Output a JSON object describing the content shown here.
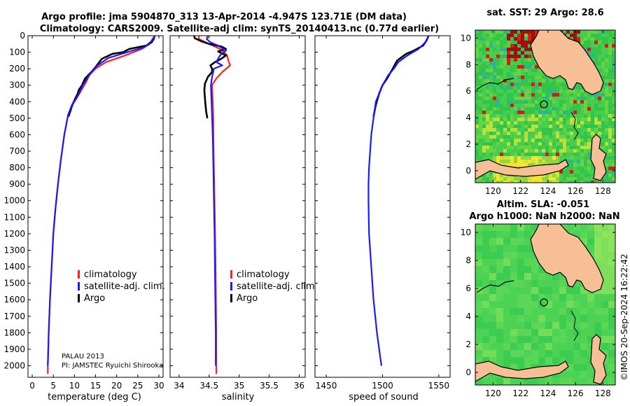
{
  "title_line1": "Argo profile: jma 5904870_313 13-Apr-2014 -4.947S 123.71E (DM data)",
  "title_line2": "Climatology: CARS2009. Satellite-adj clim: synTS_20140413.nc (0.77d earlier)",
  "colors": {
    "climatology": "#ff2020",
    "satellite": "#1a1aff",
    "argo": "#000000",
    "land": "#f7bf96",
    "coast": "#000000"
  },
  "chart_data": [
    {
      "type": "line",
      "name": "temperature-profile",
      "xlabel": "temperature (deg C)",
      "xlim": [
        -1,
        31
      ],
      "xticks": [
        0,
        5,
        10,
        15,
        20,
        25,
        30
      ],
      "ylim": [
        2070,
        0
      ],
      "yticks": [
        0,
        100,
        200,
        300,
        400,
        500,
        600,
        700,
        800,
        900,
        1000,
        1100,
        1200,
        1300,
        1400,
        1500,
        1600,
        1700,
        1800,
        1900,
        2000
      ],
      "series": [
        {
          "name": "climatology",
          "color": "#ff2020",
          "points": [
            [
              29.0,
              0
            ],
            [
              28.5,
              20
            ],
            [
              27.8,
              50
            ],
            [
              26.0,
              80
            ],
            [
              22.0,
              120
            ],
            [
              17.5,
              160
            ],
            [
              15.0,
              200
            ],
            [
              13.5,
              240
            ],
            [
              12.8,
              280
            ],
            [
              11.4,
              340
            ],
            [
              10.5,
              380
            ],
            [
              9.5,
              420
            ],
            [
              8.5,
              480
            ],
            [
              7.6,
              600
            ],
            [
              6.8,
              750
            ],
            [
              6.1,
              900
            ],
            [
              5.5,
              1050
            ],
            [
              5.0,
              1200
            ],
            [
              4.6,
              1400
            ],
            [
              4.2,
              1600
            ],
            [
              3.9,
              1800
            ],
            [
              3.7,
              2000
            ],
            [
              3.7,
              2050
            ]
          ]
        },
        {
          "name": "satellite-adj. clim.",
          "color": "#1a1aff",
          "points": [
            [
              29.1,
              0
            ],
            [
              28.4,
              30
            ],
            [
              26.5,
              70
            ],
            [
              22.5,
              100
            ],
            [
              18.0,
              135
            ],
            [
              15.5,
              180
            ],
            [
              14.0,
              220
            ],
            [
              13.0,
              260
            ],
            [
              12.0,
              300
            ],
            [
              11.3,
              340
            ],
            [
              10.4,
              380
            ],
            [
              9.4,
              420
            ],
            [
              8.5,
              480
            ],
            [
              7.6,
              600
            ],
            [
              6.8,
              750
            ],
            [
              6.1,
              900
            ],
            [
              5.5,
              1050
            ],
            [
              5.0,
              1200
            ],
            [
              4.6,
              1400
            ],
            [
              4.2,
              1600
            ],
            [
              3.9,
              1800
            ],
            [
              3.7,
              2000
            ]
          ]
        },
        {
          "name": "Argo",
          "color": "#000000",
          "points": [
            [
              29.0,
              0
            ],
            [
              28.8,
              20
            ],
            [
              28.3,
              40
            ],
            [
              27.0,
              60
            ],
            [
              23.0,
              80
            ],
            [
              21.5,
              100
            ],
            [
              19.0,
              110
            ],
            [
              16.5,
              140
            ],
            [
              15.0,
              190
            ],
            [
              14.0,
              220
            ],
            [
              12.5,
              260
            ],
            [
              11.8,
              300
            ],
            [
              11.0,
              330
            ],
            [
              10.8,
              350
            ],
            [
              10.2,
              380
            ],
            [
              9.5,
              420
            ],
            [
              9.0,
              460
            ],
            [
              8.6,
              490
            ]
          ]
        }
      ],
      "legend": [
        "climatology",
        "satellite-adj. clim.",
        "Argo"
      ],
      "annotation": [
        "PALAU 2013",
        "PI: JAMSTEC Ryuichi Shirooka"
      ]
    },
    {
      "type": "line",
      "name": "salinity-profile",
      "xlabel": "salinity",
      "xlim": [
        33.85,
        36.1
      ],
      "xticks": [
        34,
        34.5,
        35,
        35.5,
        36
      ],
      "xticklabels": [
        "34",
        "34.5",
        "35",
        "35.5",
        "36"
      ],
      "ylim": [
        2070,
        0
      ],
      "series": [
        {
          "name": "climatology",
          "color": "#ff2020",
          "points": [
            [
              34.33,
              0
            ],
            [
              34.33,
              20
            ],
            [
              34.5,
              50
            ],
            [
              34.68,
              80
            ],
            [
              34.75,
              100
            ],
            [
              34.8,
              120
            ],
            [
              34.82,
              150
            ],
            [
              34.85,
              180
            ],
            [
              34.72,
              220
            ],
            [
              34.62,
              260
            ],
            [
              34.55,
              300
            ],
            [
              34.56,
              400
            ],
            [
              34.57,
              500
            ],
            [
              34.57,
              600
            ],
            [
              34.58,
              800
            ],
            [
              34.59,
              1000
            ],
            [
              34.6,
              1200
            ],
            [
              34.61,
              1500
            ],
            [
              34.62,
              1800
            ],
            [
              34.62,
              2000
            ],
            [
              34.62,
              2050
            ]
          ]
        },
        {
          "name": "satellite-adj. clim.",
          "color": "#1a1aff",
          "points": [
            [
              34.48,
              0
            ],
            [
              34.46,
              20
            ],
            [
              34.52,
              40
            ],
            [
              34.65,
              60
            ],
            [
              34.78,
              90
            ],
            [
              34.68,
              120
            ],
            [
              34.62,
              160
            ],
            [
              34.72,
              180
            ],
            [
              34.58,
              200
            ],
            [
              34.55,
              250
            ],
            [
              34.53,
              300
            ],
            [
              34.54,
              400
            ],
            [
              34.55,
              500
            ],
            [
              34.56,
              600
            ],
            [
              34.57,
              800
            ],
            [
              34.58,
              1000
            ],
            [
              34.59,
              1200
            ],
            [
              34.6,
              1500
            ],
            [
              34.61,
              1800
            ],
            [
              34.61,
              2000
            ]
          ]
        },
        {
          "name": "Argo",
          "color": "#000000",
          "points": [
            [
              34.25,
              0
            ],
            [
              34.26,
              15
            ],
            [
              34.32,
              25
            ],
            [
              34.38,
              35
            ],
            [
              34.5,
              50
            ],
            [
              34.7,
              65
            ],
            [
              34.78,
              80
            ],
            [
              34.65,
              95
            ],
            [
              34.7,
              105
            ],
            [
              34.78,
              120
            ],
            [
              34.7,
              140
            ],
            [
              34.6,
              160
            ],
            [
              34.52,
              180
            ],
            [
              34.55,
              200
            ],
            [
              34.55,
              220
            ],
            [
              34.48,
              250
            ],
            [
              34.43,
              290
            ],
            [
              34.42,
              330
            ],
            [
              34.43,
              380
            ],
            [
              34.44,
              420
            ],
            [
              34.45,
              460
            ],
            [
              34.47,
              500
            ]
          ]
        }
      ],
      "legend": [
        "climatology",
        "satellite-adj. clim.",
        "Argo"
      ]
    },
    {
      "type": "line",
      "name": "sound-speed-profile",
      "xlabel": "speed of sound",
      "xlim": [
        1440,
        1560
      ],
      "xticks": [
        1450,
        1500,
        1550
      ],
      "ylim": [
        2070,
        0
      ],
      "series": [
        {
          "name": "satellite-adj. clim.",
          "color": "#1a1aff",
          "points": [
            [
              1541,
              0
            ],
            [
              1538,
              40
            ],
            [
              1532,
              80
            ],
            [
              1522,
              120
            ],
            [
              1514,
              160
            ],
            [
              1510,
              200
            ],
            [
              1505,
              240
            ],
            [
              1500,
              300
            ],
            [
              1497,
              350
            ],
            [
              1494,
              400
            ],
            [
              1492,
              500
            ],
            [
              1490,
              600
            ],
            [
              1489,
              700
            ],
            [
              1488,
              800
            ],
            [
              1487.5,
              900
            ],
            [
              1487.5,
              1000
            ],
            [
              1488,
              1200
            ],
            [
              1490,
              1400
            ],
            [
              1492,
              1600
            ],
            [
              1495,
              1800
            ],
            [
              1499,
              2000
            ]
          ]
        },
        {
          "name": "Argo",
          "color": "#000000",
          "points": [
            [
              1541,
              0
            ],
            [
              1539,
              30
            ],
            [
              1536,
              60
            ],
            [
              1528,
              90
            ],
            [
              1521,
              110
            ],
            [
              1513,
              150
            ],
            [
              1509,
              200
            ],
            [
              1504,
              260
            ],
            [
              1500,
              300
            ],
            [
              1497,
              350
            ],
            [
              1494,
              420
            ],
            [
              1492,
              490
            ]
          ]
        }
      ]
    },
    {
      "type": "heatmap",
      "name": "sst-map",
      "title": "sat. SST: 29 Argo: 28.6",
      "xlim": [
        118.7,
        128.9
      ],
      "ylim": [
        -0.9,
        10.6
      ],
      "xticks": [
        120,
        122,
        124,
        126,
        128
      ],
      "yticks": [
        0,
        2,
        4,
        6,
        8,
        10
      ],
      "marker": [
        123.7,
        5.0
      ]
    },
    {
      "type": "heatmap",
      "name": "sla-map",
      "title_line1": "Altim. SLA: -0.051",
      "title_line2": "Argo h1000: NaN h2000: NaN",
      "xlim": [
        118.7,
        128.9
      ],
      "ylim": [
        -0.9,
        10.6
      ],
      "xticks": [
        120,
        122,
        124,
        126,
        128
      ],
      "yticks": [
        0,
        2,
        4,
        6,
        8,
        10
      ],
      "marker": [
        123.7,
        5.0
      ]
    }
  ],
  "credit": "©IMOS 20-Sep-2024 16:22:42"
}
